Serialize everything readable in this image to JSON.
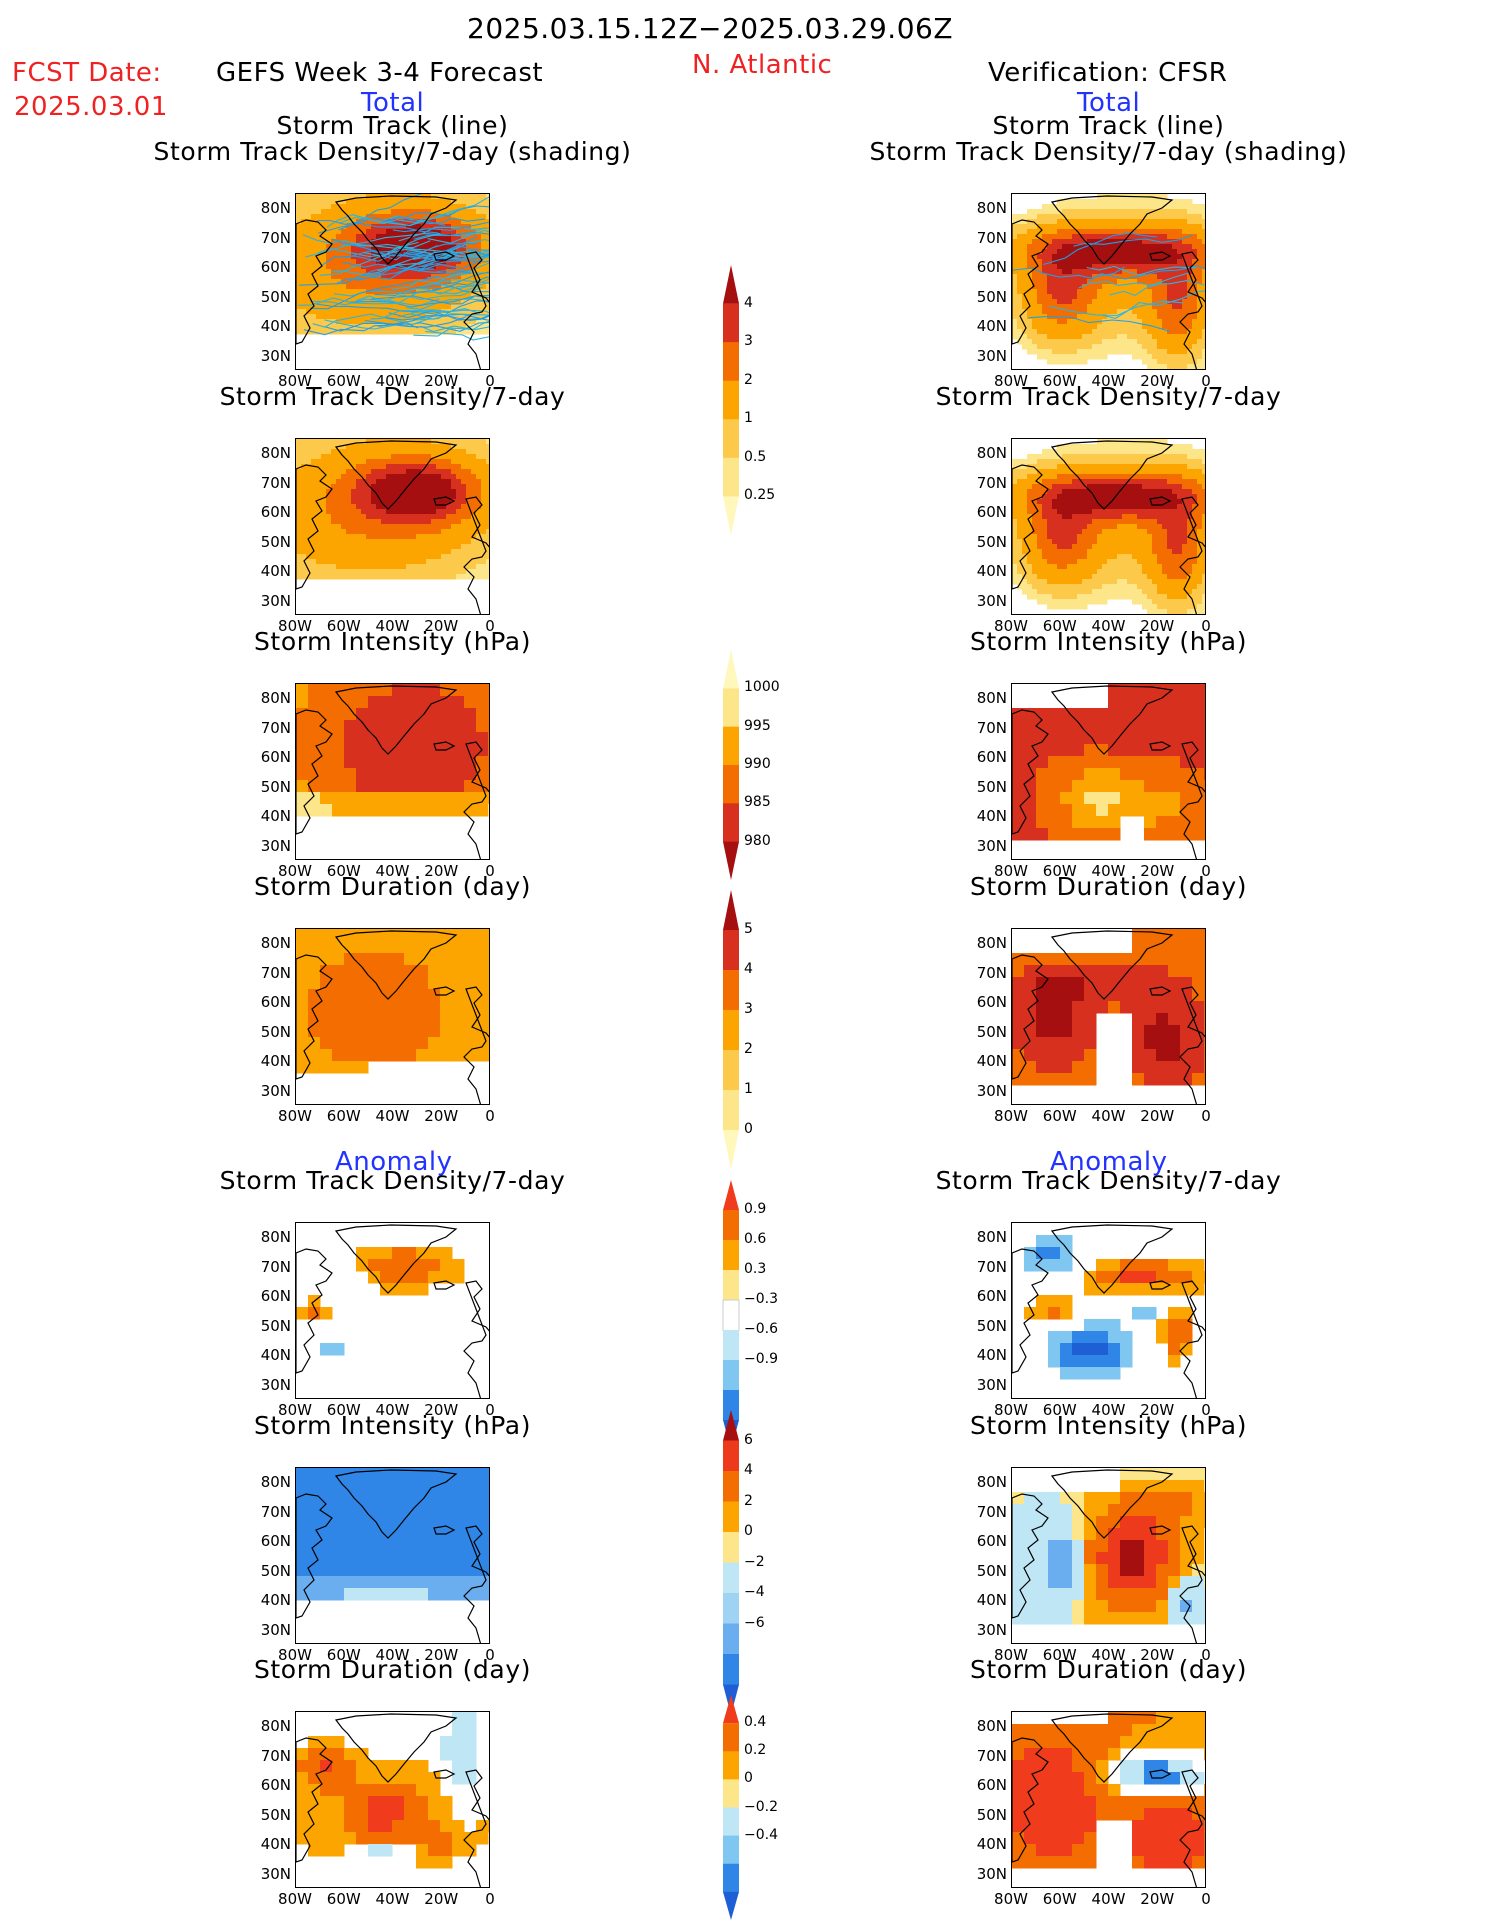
{
  "header": {
    "date_range": "2025.03.15.12Z−2025.03.29.06Z",
    "region": "N. Atlantic",
    "fcst_label": "FCST Date:",
    "fcst_date": "2025.03.01",
    "left_title": "GEFS Week 3-4 Forecast",
    "right_title": "Verification: CFSR",
    "total_label": "Total",
    "anomaly_label": "Anomaly"
  },
  "panel_titles": {
    "track_line": "Storm Track (line)",
    "track_shading": "Storm Track Density/7-day (shading)",
    "density": "Storm Track Density/7-day",
    "intensity": "Storm Intensity (hPa)",
    "duration": "Storm Duration (day)"
  },
  "axes": {
    "lat_labels": [
      "80N",
      "70N",
      "60N",
      "50N",
      "40N",
      "30N"
    ],
    "lon_labels": [
      "80W",
      "60W",
      "40W",
      "20W",
      "0"
    ]
  },
  "colorbars": {
    "density_total": {
      "labels": [
        "4",
        "3",
        "2",
        "1",
        "0.5",
        "0.25"
      ],
      "colors": [
        "#a50f0f",
        "#d7301f",
        "#f46d00",
        "#fca500",
        "#fdc94b",
        "#fde68a",
        "#fff7bc"
      ]
    },
    "intensity_total": {
      "labels": [
        "1000",
        "995",
        "990",
        "985",
        "980"
      ],
      "colors": [
        "#fff7bc",
        "#fde68a",
        "#fca500",
        "#f46d00",
        "#d7301f",
        "#a50f0f"
      ]
    },
    "duration_total": {
      "labels": [
        "5",
        "4",
        "3",
        "2",
        "1",
        "0"
      ],
      "colors": [
        "#a50f0f",
        "#d7301f",
        "#f46d00",
        "#fca500",
        "#fdc94b",
        "#fde68a",
        "#fff7bc"
      ]
    },
    "density_anom": {
      "labels": [
        "0.9",
        "0.6",
        "0.3",
        "−0.3",
        "−0.6",
        "−0.9"
      ],
      "colors": [
        "#f03c1c",
        "#f46d00",
        "#fca500",
        "#fde68a",
        "#ffffff",
        "#bfe6f5",
        "#7fc6f0",
        "#2f86e6",
        "#1f5fd6"
      ]
    },
    "intensity_anom": {
      "labels": [
        "6",
        "4",
        "2",
        "0",
        "−2",
        "−4",
        "−6"
      ],
      "colors": [
        "#a50f0f",
        "#ee3a1c",
        "#f46d00",
        "#fca500",
        "#fde68a",
        "#bfe6f5",
        "#9ed3f3",
        "#6aaef0",
        "#2f86e6",
        "#1f5fd6"
      ]
    },
    "duration_anom": {
      "labels": [
        "0.4",
        "0.2",
        "0",
        "−0.2",
        "−0.4"
      ],
      "colors": [
        "#f03c1c",
        "#f46d00",
        "#fca500",
        "#fde68a",
        "#bfe6f5",
        "#7fc6f0",
        "#2f86e6",
        "#1f5fd6"
      ]
    }
  }
}
